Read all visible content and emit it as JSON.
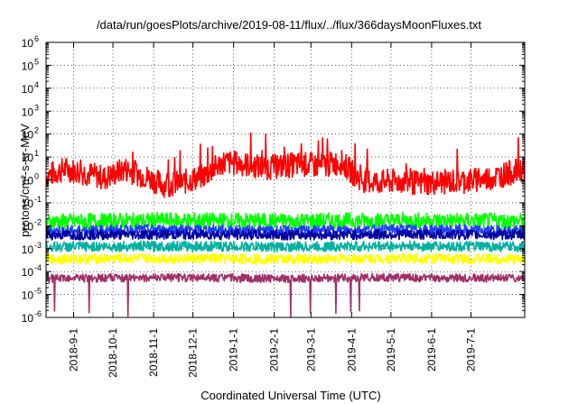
{
  "chart_data": {
    "type": "line",
    "title": "/data/run/goesPlots/archive/2019-08-11/flux/../flux/366daysMoonFluxes.txt",
    "xlabel": "Coordinated Universal Time (UTC)",
    "ylabel": "protons/cm²-s-sr-MeV",
    "yscale": "log",
    "ylim": [
      1e-06,
      1000000.0
    ],
    "xlim": [
      "2018-08-11",
      "2019-08-11"
    ],
    "grid": true,
    "y_ticks": [
      {
        "base": "10",
        "exp": "-6"
      },
      {
        "base": "10",
        "exp": "-5"
      },
      {
        "base": "10",
        "exp": "-4"
      },
      {
        "base": "10",
        "exp": "-3"
      },
      {
        "base": "10",
        "exp": "-2"
      },
      {
        "base": "10",
        "exp": "-1"
      },
      {
        "base": "10",
        "exp": "0"
      },
      {
        "base": "10",
        "exp": "1"
      },
      {
        "base": "10",
        "exp": "2"
      },
      {
        "base": "10",
        "exp": "3"
      },
      {
        "base": "10",
        "exp": "4"
      },
      {
        "base": "10",
        "exp": "5"
      },
      {
        "base": "10",
        "exp": "6"
      }
    ],
    "x_ticks": [
      {
        "label": "2018-9-1",
        "date": "2018-09-01"
      },
      {
        "label": "2018-10-1",
        "date": "2018-10-01"
      },
      {
        "label": "2018-11-1",
        "date": "2018-11-01"
      },
      {
        "label": "2018-12-1",
        "date": "2018-12-01"
      },
      {
        "label": "2019-1-1",
        "date": "2019-01-01"
      },
      {
        "label": "2019-2-1",
        "date": "2019-02-01"
      },
      {
        "label": "2019-3-1",
        "date": "2019-03-01"
      },
      {
        "label": "2019-4-1",
        "date": "2019-04-01"
      },
      {
        "label": "2019-5-1",
        "date": "2019-05-01"
      },
      {
        "label": "2019-6-1",
        "date": "2019-06-01"
      },
      {
        "label": "2019-7-1",
        "date": "2019-07-01"
      }
    ],
    "series": [
      {
        "color": "#ff0000",
        "x": [
          "2018-08-11",
          "2018-08-26",
          "2018-09-10",
          "2018-09-25",
          "2018-10-10",
          "2018-10-25",
          "2018-11-09",
          "2018-11-24",
          "2018-12-09",
          "2018-12-24",
          "2019-01-08",
          "2019-01-23",
          "2019-02-07",
          "2019-02-22",
          "2019-03-09",
          "2019-03-24",
          "2019-04-08",
          "2019-04-23",
          "2019-05-08",
          "2019-05-23",
          "2019-06-07",
          "2019-06-22",
          "2019-07-07",
          "2019-07-22",
          "2019-08-11"
        ],
        "y": [
          1.5,
          3,
          2,
          1.2,
          3,
          1.5,
          0.6,
          0.8,
          1.5,
          6,
          5,
          3.5,
          4,
          5,
          4,
          6,
          1,
          0.8,
          0.9,
          0.7,
          0.8,
          0.9,
          1,
          1.5,
          3
        ]
      },
      {
        "color": "#00ff00",
        "x": [
          "2018-08-11",
          "2018-11-09",
          "2019-02-07",
          "2019-05-08",
          "2019-08-11"
        ],
        "y": [
          0.015,
          0.017,
          0.016,
          0.017,
          0.016
        ]
      },
      {
        "color": "#2040ff",
        "x": [
          "2018-08-11",
          "2018-11-09",
          "2019-02-07",
          "2019-05-08",
          "2019-08-11"
        ],
        "y": [
          0.006,
          0.007,
          0.006,
          0.007,
          0.006
        ]
      },
      {
        "color": "#0000a0",
        "x": [
          "2018-08-11",
          "2018-11-09",
          "2019-02-07",
          "2019-05-08",
          "2019-08-11"
        ],
        "y": [
          0.004,
          0.0042,
          0.004,
          0.0042,
          0.004
        ]
      },
      {
        "color": "#00b0a0",
        "x": [
          "2018-08-11",
          "2018-11-09",
          "2019-02-07",
          "2019-05-08",
          "2019-08-11"
        ],
        "y": [
          0.0012,
          0.0013,
          0.0012,
          0.0013,
          0.0012
        ]
      },
      {
        "color": "#ffff00",
        "x": [
          "2018-08-11",
          "2018-11-09",
          "2019-02-07",
          "2019-05-08",
          "2019-08-11"
        ],
        "y": [
          0.00035,
          0.00038,
          0.00035,
          0.00038,
          0.00035
        ]
      },
      {
        "color": "#a0306a",
        "x": [
          "2018-08-11",
          "2018-11-09",
          "2019-02-07",
          "2019-05-08",
          "2019-08-11"
        ],
        "y": [
          5e-05,
          5.5e-05,
          5e-05,
          5.5e-05,
          5e-05
        ]
      }
    ]
  }
}
